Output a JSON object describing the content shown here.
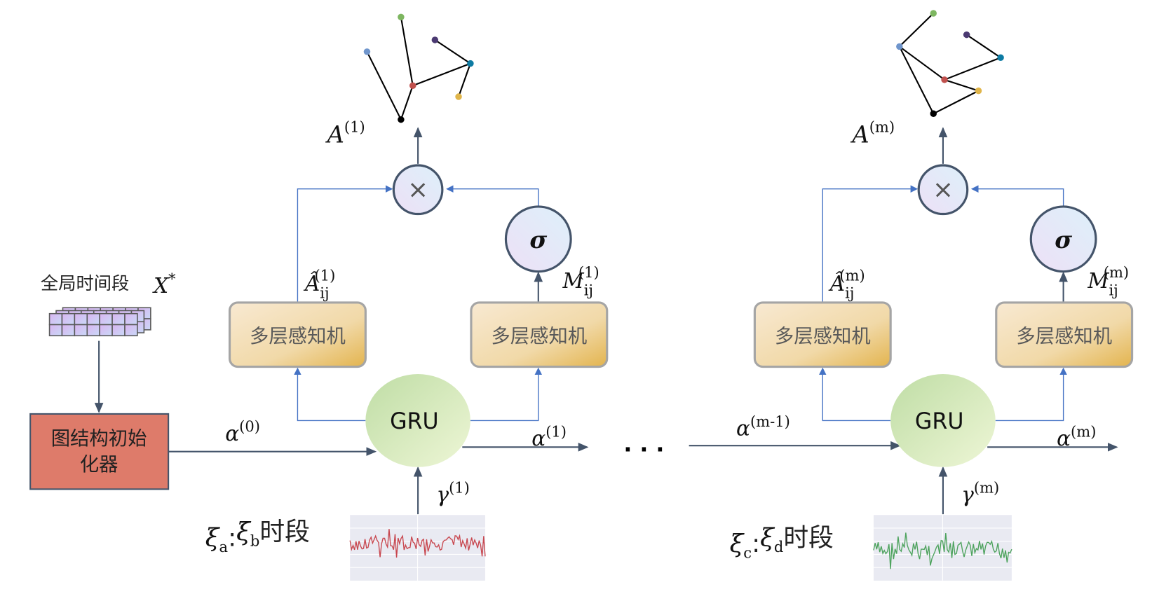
{
  "input": {
    "label": "全局时间段",
    "symbol": "X",
    "symbol_sup": "*"
  },
  "initializer": {
    "line1": "图结构初始",
    "line2": "化器",
    "fill": "#DE7B6A"
  },
  "mlp_label": "多层感知机",
  "gru_label": "GRU",
  "sigma": "σ",
  "multiply": "×",
  "ellipsis": ". . .",
  "blocks": [
    {
      "A": "A",
      "A_sup": "(1)",
      "Ahat": "Â",
      "Ahat_sub": "ij",
      "Ahat_sup": "(1)",
      "M": "M",
      "M_sub": "ij",
      "M_sup": "(1)",
      "alpha_in": "α",
      "alpha_in_sup": "(0)",
      "alpha_out": "α",
      "alpha_out_sup": "(1)",
      "gamma": "γ",
      "gamma_sup": "(1)",
      "segment": {
        "xi1": "ξ",
        "s1": "a",
        "sep": ":",
        "xi2": "ξ",
        "s2": "b",
        "suffix": "时段"
      },
      "wave_color": "#C8474F"
    },
    {
      "A": "A",
      "A_sup": "(m)",
      "Ahat": "Â",
      "Ahat_sub": "ij",
      "Ahat_sup": "(m)",
      "M": "M",
      "M_sub": "ij",
      "M_sup": "(m)",
      "alpha_in": "α",
      "alpha_in_sup": "(m-1)",
      "alpha_out": "α",
      "alpha_out_sup": "(m)",
      "gamma": "γ",
      "gamma_sup": "(m)",
      "segment": {
        "xi1": "ξ",
        "s1": "c",
        "sep": ":",
        "xi2": "ξ",
        "s2": "d",
        "suffix": "时段"
      },
      "wave_color": "#4EA35E"
    }
  ],
  "node_colors": {
    "green": "#7DB660",
    "purple": "#4B3A72",
    "lightblue": "#6F95CC",
    "teal": "#0D7BA3",
    "red": "#C0504D",
    "yellow": "#E0B54A",
    "black": "#000000"
  }
}
